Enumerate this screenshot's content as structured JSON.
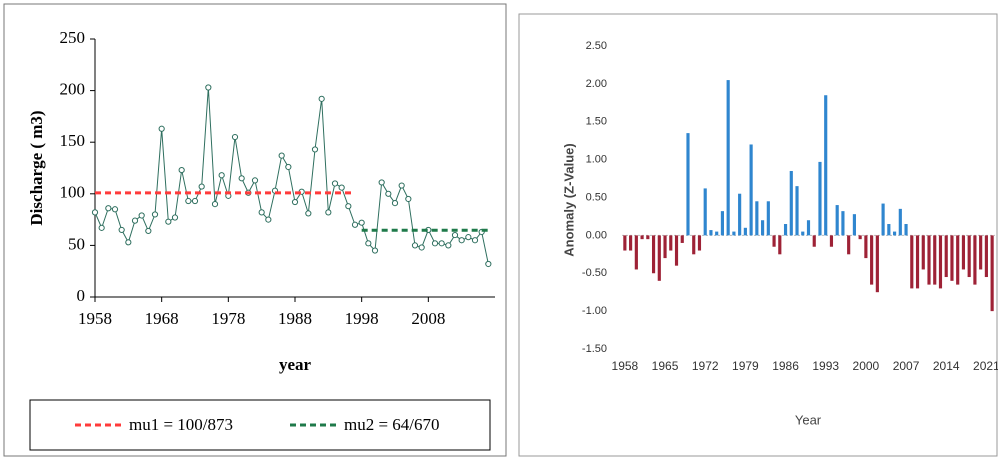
{
  "chart_data": [
    {
      "type": "line",
      "y_label": "Discharge ( m3)",
      "x_label": "year",
      "x": [
        1958,
        1959,
        1960,
        1961,
        1962,
        1963,
        1964,
        1965,
        1966,
        1967,
        1968,
        1969,
        1970,
        1971,
        1972,
        1973,
        1974,
        1975,
        1976,
        1977,
        1978,
        1979,
        1980,
        1981,
        1982,
        1983,
        1984,
        1985,
        1986,
        1987,
        1988,
        1989,
        1990,
        1991,
        1992,
        1993,
        1994,
        1995,
        1996,
        1997,
        1998,
        1999,
        2000,
        2001,
        2002,
        2003,
        2004,
        2005,
        2006,
        2007,
        2008,
        2009,
        2010,
        2011,
        2012,
        2013,
        2014,
        2015,
        2016,
        2017
      ],
      "series": [
        {
          "color": "#2f6f5f",
          "values": [
            82,
            67,
            86,
            85,
            65,
            53,
            74,
            79,
            64,
            80,
            163,
            73,
            77,
            123,
            93,
            93,
            107,
            203,
            90,
            118,
            98,
            155,
            115,
            101,
            113,
            82,
            75,
            103,
            137,
            126,
            92,
            102,
            81,
            143,
            192,
            82,
            110,
            106,
            88,
            70,
            72,
            52,
            45,
            111,
            100,
            91,
            108,
            95,
            50,
            48,
            65,
            52,
            52,
            50,
            60,
            55,
            58,
            55,
            63,
            32
          ]
        }
      ],
      "means": [
        {
          "name": "mu1 = 100/873",
          "color": "#ff3b3b",
          "value": 100.873,
          "x": [
            1958,
            1997
          ]
        },
        {
          "name": "mu2 = 64/670",
          "color": "#1f7a4a",
          "value": 64.67,
          "x": [
            1998,
            2017
          ]
        }
      ],
      "xlim": [
        1958,
        2018
      ],
      "xticks": [
        1958,
        1968,
        1978,
        1988,
        1998,
        2008
      ],
      "ylim": [
        0,
        250
      ],
      "yticks": [
        0,
        50,
        100,
        150,
        200,
        250
      ],
      "legend": "bottom"
    },
    {
      "type": "bar",
      "y_label": "Anomaly (Z-Value)",
      "x_label": "Year",
      "x": [
        1958,
        1959,
        1960,
        1961,
        1962,
        1963,
        1964,
        1965,
        1966,
        1967,
        1968,
        1969,
        1970,
        1971,
        1972,
        1973,
        1974,
        1975,
        1976,
        1977,
        1978,
        1979,
        1980,
        1981,
        1982,
        1983,
        1984,
        1985,
        1986,
        1987,
        1988,
        1989,
        1990,
        1991,
        1992,
        1993,
        1994,
        1995,
        1996,
        1997,
        1998,
        1999,
        2000,
        2001,
        2002,
        2003,
        2004,
        2005,
        2006,
        2007,
        2008,
        2009,
        2010,
        2011,
        2012,
        2013,
        2014,
        2015,
        2016,
        2017,
        2018,
        2019,
        2020,
        2021,
        2022
      ],
      "values": [
        -0.2,
        -0.2,
        -0.45,
        -0.05,
        -0.05,
        -0.5,
        -0.6,
        -0.3,
        -0.2,
        -0.4,
        -0.1,
        1.35,
        -0.25,
        -0.2,
        0.62,
        0.07,
        0.05,
        0.32,
        2.05,
        0.05,
        0.55,
        0.1,
        1.2,
        0.45,
        0.2,
        0.45,
        -0.15,
        -0.25,
        0.15,
        0.85,
        0.65,
        0.05,
        0.2,
        -0.15,
        0.97,
        1.85,
        -0.15,
        0.4,
        0.32,
        -0.25,
        0.28,
        -0.05,
        -0.3,
        -0.65,
        -0.75,
        0.42,
        0.15,
        0.05,
        0.35,
        0.15,
        -0.7,
        -0.7,
        -0.45,
        -0.65,
        -0.65,
        -0.7,
        -0.55,
        -0.6,
        -0.65,
        -0.45,
        -0.55,
        -0.65,
        -0.45,
        -0.55,
        -1.0
      ],
      "positive_color": "#2f86cf",
      "negative_color": "#9e2236",
      "xlim": [
        1957.5,
        2022.5
      ],
      "xticks": [
        1958,
        1965,
        1972,
        1979,
        1986,
        1993,
        2000,
        2007,
        2014,
        2021
      ],
      "ylim": [
        -1.5,
        2.5
      ],
      "yticks": [
        {
          "value": -1.5,
          "label": "-1.50"
        },
        {
          "value": -1,
          "label": "-1.00"
        },
        {
          "value": -0.5,
          "label": "-0.50"
        },
        {
          "value": 0,
          "label": "0.00"
        },
        {
          "value": 0.5,
          "label": "0.50"
        },
        {
          "value": 1,
          "label": "1.00"
        },
        {
          "value": 1.5,
          "label": "1.50"
        },
        {
          "value": 2,
          "label": "2.00"
        },
        {
          "value": 2.5,
          "label": "2.50"
        }
      ]
    }
  ]
}
